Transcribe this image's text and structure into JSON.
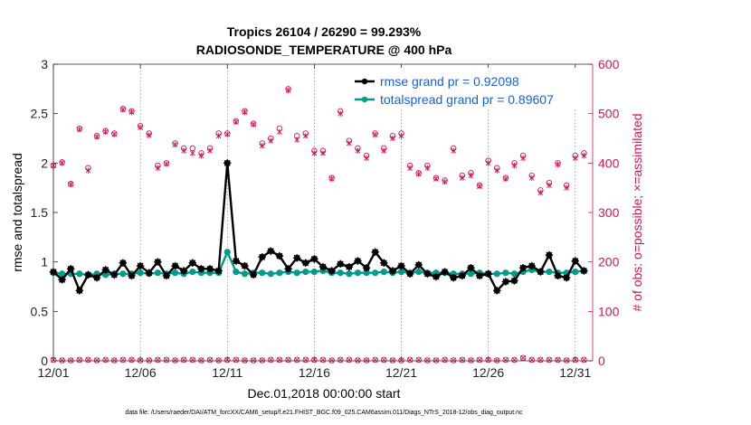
{
  "chart_data": {
    "type": "line",
    "title_line1": "Tropics 26104 / 26290 = 99.293%",
    "title_line2": "RADIOSONDE_TEMPERATURE @ 400 hPa",
    "xlabel": "Dec.01,2018 00:00:00 start",
    "ylabel_left": "rmse and totalspread",
    "ylabel_right": "# of obs: o=possible; ×=assimilated",
    "footer": "data file: /Users/raeder/DAI/ATM_forcXX/CAM6_setup/f.e21.FHIST_BGC.f09_025.CAM6assim.011/Diags_NTrS_2018-12/obs_diag_output.nc",
    "xlim": [
      1,
      32
    ],
    "ylim_left": [
      0,
      3
    ],
    "ylim_right": [
      0,
      600
    ],
    "x_ticks": [
      1,
      6,
      11,
      16,
      21,
      26,
      31
    ],
    "x_tick_labels": [
      "12/01",
      "12/06",
      "12/11",
      "12/16",
      "12/21",
      "12/26",
      "12/31"
    ],
    "y_ticks_left": [
      "0",
      "0.5",
      "1",
      "1.5",
      "2",
      "2.5",
      "3"
    ],
    "y_ticks_right": [
      "0",
      "100",
      "200",
      "300",
      "400",
      "500",
      "600"
    ],
    "x": [
      1.0,
      1.5,
      2.0,
      2.5,
      3.0,
      3.5,
      4.0,
      4.5,
      5.0,
      5.5,
      6.0,
      6.5,
      7.0,
      7.5,
      8.0,
      8.5,
      9.0,
      9.5,
      10.0,
      10.5,
      11.0,
      11.5,
      12.0,
      12.5,
      13.0,
      13.5,
      14.0,
      14.5,
      15.0,
      15.5,
      16.0,
      16.5,
      17.0,
      17.5,
      18.0,
      18.5,
      19.0,
      19.5,
      20.0,
      20.5,
      21.0,
      21.5,
      22.0,
      22.5,
      23.0,
      23.5,
      24.0,
      24.5,
      25.0,
      25.5,
      26.0,
      26.5,
      27.0,
      27.5,
      28.0,
      28.5,
      29.0,
      29.5,
      30.0,
      30.5,
      31.0,
      31.5
    ],
    "series": [
      {
        "name": "rmse",
        "legend": "rmse grand pr = 0.92098",
        "color": "#000000",
        "axis": "left",
        "values": [
          0.9,
          0.82,
          0.93,
          0.71,
          0.87,
          0.84,
          0.92,
          0.87,
          0.99,
          0.86,
          0.96,
          0.89,
          1.0,
          0.86,
          0.96,
          0.91,
          0.99,
          0.93,
          0.93,
          0.91,
          2.0,
          1.01,
          0.96,
          0.87,
          1.05,
          1.11,
          1.06,
          0.93,
          1.04,
          0.99,
          1.03,
          0.95,
          0.91,
          0.98,
          0.95,
          1.01,
          0.94,
          1.1,
          0.99,
          0.91,
          0.96,
          0.88,
          0.97,
          0.88,
          0.85,
          0.9,
          0.84,
          0.86,
          0.94,
          0.86,
          0.88,
          0.71,
          0.8,
          0.81,
          0.94,
          0.96,
          0.9,
          1.07,
          0.86,
          0.84,
          1.01,
          0.91
        ]
      },
      {
        "name": "totalspread",
        "legend": "totalspread grand pr = 0.89607",
        "color": "#009b8c",
        "axis": "left",
        "values": [
          0.89,
          0.88,
          0.88,
          0.88,
          0.87,
          0.88,
          0.87,
          0.88,
          0.88,
          0.88,
          0.89,
          0.88,
          0.89,
          0.88,
          0.89,
          0.88,
          0.9,
          0.89,
          0.89,
          0.89,
          1.1,
          0.9,
          0.88,
          0.89,
          0.89,
          0.88,
          0.89,
          0.9,
          0.89,
          0.9,
          0.9,
          0.91,
          0.89,
          0.89,
          0.88,
          0.89,
          0.89,
          0.89,
          0.9,
          0.89,
          0.9,
          0.89,
          0.9,
          0.89,
          0.89,
          0.89,
          0.88,
          0.88,
          0.88,
          0.89,
          0.88,
          0.88,
          0.89,
          0.88,
          0.9,
          0.92,
          0.9,
          0.9,
          0.89,
          0.89,
          0.9,
          0.91
        ]
      },
      {
        "name": "obs_possible",
        "color": "#d4145a",
        "axis": "right",
        "values": [
          395,
          402,
          358,
          470,
          390,
          455,
          465,
          460,
          510,
          505,
          475,
          460,
          395,
          400,
          440,
          430,
          430,
          420,
          430,
          460,
          460,
          485,
          505,
          480,
          440,
          450,
          470,
          550,
          455,
          460,
          425,
          425,
          370,
          505,
          445,
          430,
          415,
          460,
          430,
          455,
          460,
          395,
          380,
          395,
          370,
          365,
          430,
          375,
          380,
          355,
          405,
          390,
          370,
          400,
          415,
          375,
          345,
          360,
          400,
          355,
          415,
          420
        ]
      },
      {
        "name": "obs_assimilated",
        "color": "#d4145a",
        "axis": "right",
        "values": [
          395,
          400,
          357,
          468,
          385,
          453,
          463,
          458,
          508,
          503,
          472,
          456,
          390,
          398,
          437,
          425,
          420,
          415,
          425,
          455,
          458,
          483,
          503,
          478,
          435,
          445,
          463,
          547,
          447,
          455,
          420,
          420,
          368,
          500,
          440,
          425,
          410,
          457,
          425,
          450,
          455,
          390,
          378,
          390,
          368,
          362,
          425,
          370,
          375,
          353,
          400,
          385,
          368,
          395,
          410,
          370,
          340,
          355,
          397,
          350,
          410,
          415
        ]
      },
      {
        "name": "obs_rejected_possible",
        "color": "#d4145a",
        "axis": "right",
        "values": [
          2,
          1,
          1,
          2,
          2,
          1,
          2,
          1,
          2,
          2,
          1,
          1,
          2,
          2,
          1,
          2,
          2,
          1,
          2,
          1,
          2,
          2,
          1,
          1,
          1,
          2,
          2,
          2,
          2,
          2,
          2,
          2,
          1,
          2,
          2,
          1,
          1,
          2,
          2,
          1,
          1,
          2,
          2,
          1,
          1,
          2,
          1,
          2,
          1,
          2,
          2,
          1,
          2,
          2,
          6,
          2,
          2,
          2,
          2,
          1,
          2,
          2
        ]
      }
    ],
    "legend_placement": "top-right"
  }
}
